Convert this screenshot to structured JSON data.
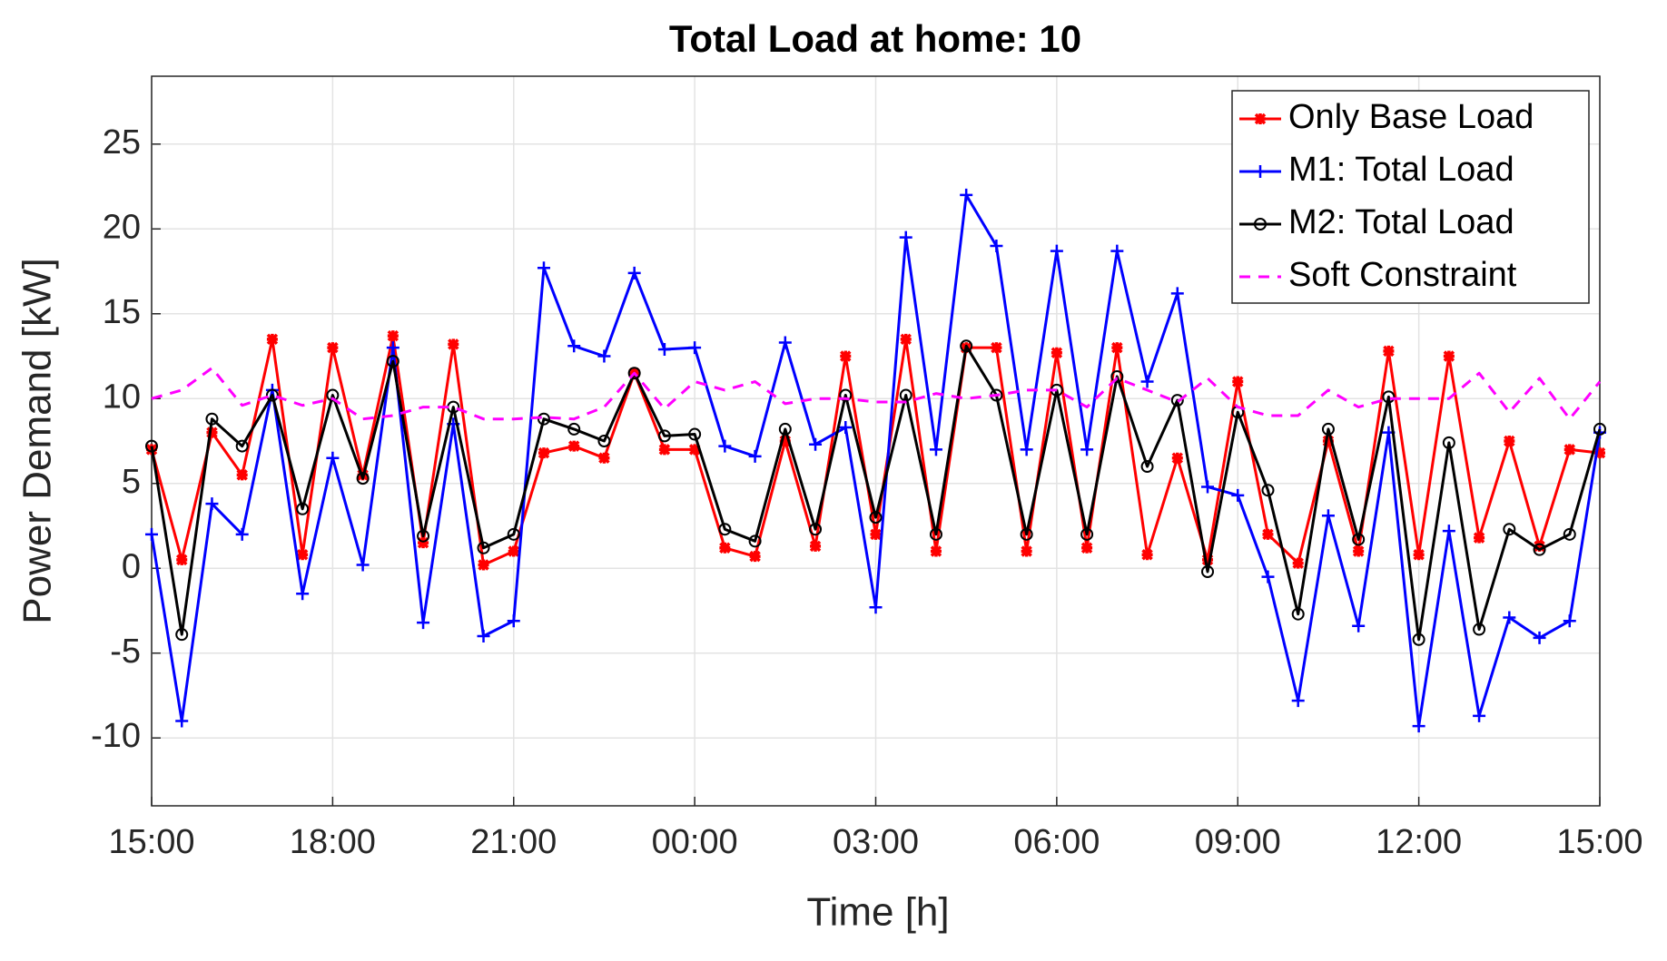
{
  "chart_data": {
    "type": "line",
    "title": "Total Load at home: 10",
    "xlabel": "Time [h]",
    "ylabel": "Power Demand [kW]",
    "x": [
      0,
      0.5,
      1,
      1.5,
      2,
      2.5,
      3,
      3.5,
      4,
      4.5,
      5,
      5.5,
      6,
      6.5,
      7,
      7.5,
      8,
      8.5,
      9,
      9.5,
      10,
      10.5,
      11,
      11.5,
      12,
      12.5,
      13,
      13.5,
      14,
      14.5,
      15,
      15.5,
      16,
      16.5,
      17,
      17.5,
      18,
      18.5,
      19,
      19.5,
      20,
      20.5,
      21,
      21.5,
      22,
      22.5,
      23,
      23.5,
      24
    ],
    "xlim": [
      0,
      24
    ],
    "xticks": [
      {
        "value": 0,
        "label": "15:00"
      },
      {
        "value": 3,
        "label": "18:00"
      },
      {
        "value": 6,
        "label": "21:00"
      },
      {
        "value": 9,
        "label": "00:00"
      },
      {
        "value": 12,
        "label": "03:00"
      },
      {
        "value": 15,
        "label": "06:00"
      },
      {
        "value": 18,
        "label": "09:00"
      },
      {
        "value": 21,
        "label": "12:00"
      },
      {
        "value": 24,
        "label": "15:00"
      }
    ],
    "ylim": [
      -14,
      29
    ],
    "yticks": [
      -10,
      -5,
      0,
      5,
      10,
      15,
      20,
      25
    ],
    "grid": true,
    "legend": "upper right",
    "series": [
      {
        "name": "Only Base Load",
        "color": "#ff0000",
        "marker": "star",
        "linestyle": "solid",
        "values": [
          7,
          0.5,
          8,
          5.5,
          13.5,
          0.8,
          13,
          5.5,
          13.7,
          1.5,
          13.2,
          0.2,
          1,
          6.8,
          7.2,
          6.5,
          11.5,
          7,
          7,
          1.2,
          0.7,
          7.5,
          1.3,
          12.5,
          2,
          13.5,
          1,
          13,
          13,
          1,
          12.7,
          1.2,
          13,
          0.8,
          6.5,
          0.5,
          11,
          2,
          0.3,
          7.5,
          1,
          12.8,
          0.8,
          12.5,
          1.8,
          7.5,
          1.3,
          7,
          6.8
        ]
      },
      {
        "name": "M1: Total Load",
        "color": "#0000ff",
        "marker": "plus",
        "linestyle": "solid",
        "values": [
          2,
          -9,
          3.8,
          2,
          10.5,
          -1.5,
          6.5,
          0.2,
          13,
          -3.2,
          8.5,
          -4,
          -3.1,
          17.7,
          13.1,
          12.5,
          17.4,
          12.9,
          13,
          7.2,
          6.6,
          13.3,
          7.3,
          8.3,
          -2.3,
          19.5,
          7,
          22,
          19,
          7,
          18.7,
          7,
          18.7,
          11,
          16.2,
          4.8,
          4.3,
          -0.5,
          -7.8,
          3.1,
          -3.4,
          8,
          -9.3,
          2.2,
          -8.7,
          -2.9,
          -4.1,
          -3.1,
          8
        ]
      },
      {
        "name": "M2: Total Load",
        "color": "#000000",
        "marker": "circle",
        "linestyle": "solid",
        "values": [
          7.2,
          -3.9,
          8.8,
          7.2,
          10.2,
          3.5,
          10.2,
          5.3,
          12.2,
          1.9,
          9.5,
          1.2,
          2,
          8.8,
          8.2,
          7.5,
          11.5,
          7.8,
          7.9,
          2.3,
          1.6,
          8.2,
          2.3,
          10.2,
          3,
          10.2,
          2,
          13.1,
          10.2,
          2,
          10.5,
          2,
          11.3,
          6,
          9.9,
          -0.2,
          9.2,
          4.6,
          -2.7,
          8.2,
          1.7,
          10.1,
          -4.2,
          7.4,
          -3.6,
          2.3,
          1.1,
          2,
          8.2
        ]
      },
      {
        "name": "Soft Constraint",
        "color": "#ff00ff",
        "marker": "none",
        "linestyle": "dashed",
        "values": [
          10,
          10.5,
          11.8,
          9.6,
          10.2,
          9.6,
          10,
          8.8,
          9,
          9.5,
          9.5,
          8.8,
          8.8,
          8.9,
          8.8,
          9.5,
          11.5,
          9.4,
          11,
          10.5,
          11,
          9.7,
          10,
          10,
          9.8,
          9.8,
          10.3,
          10,
          10.2,
          10.5,
          10.5,
          9.5,
          11.2,
          10.5,
          9.8,
          11.2,
          9.5,
          9,
          9,
          10.5,
          9.5,
          10,
          10,
          10,
          11.5,
          9.2,
          11.2,
          8.8,
          11
        ]
      }
    ]
  }
}
